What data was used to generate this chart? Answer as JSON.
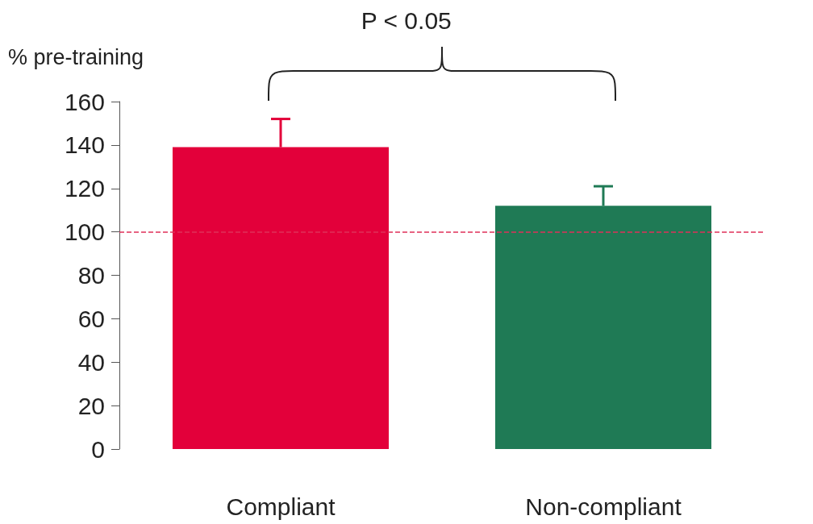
{
  "chart_data": {
    "type": "bar",
    "ylabel": "% pre-training",
    "categories": [
      "Compliant",
      "Non-compliant"
    ],
    "values": [
      139,
      112
    ],
    "colors": [
      "#e3003a",
      "#1f7a55"
    ],
    "errors": [
      [
        139,
        152
      ],
      [
        112,
        121
      ]
    ],
    "ylim": [
      0,
      160
    ],
    "yticks": [
      0,
      20,
      40,
      60,
      80,
      100,
      120,
      140,
      160
    ],
    "grid": false,
    "ref_lines": [
      {
        "axis": "y",
        "value": 100,
        "color": "#e0305a",
        "line_style": "dashed"
      }
    ],
    "annotations": [
      "P < 0.05"
    ]
  }
}
